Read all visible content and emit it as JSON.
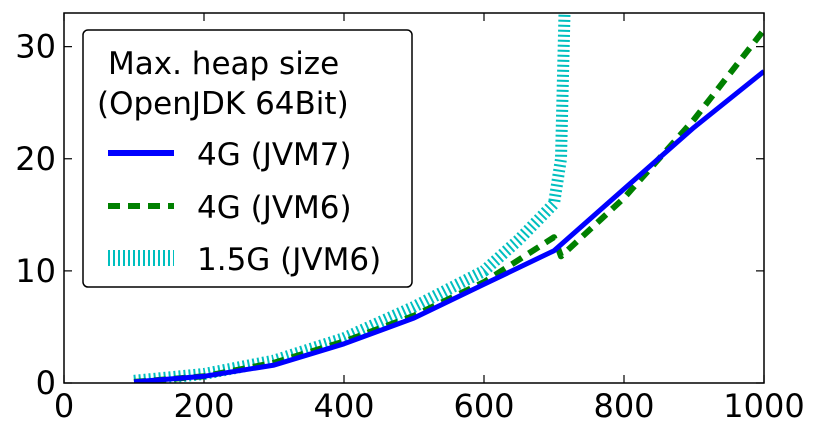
{
  "chart_data": {
    "type": "line",
    "title": "",
    "xlabel": "",
    "ylabel": "",
    "xlim": [
      0,
      1000
    ],
    "ylim": [
      0,
      33
    ],
    "x_ticks": [
      0,
      200,
      400,
      600,
      800,
      1000
    ],
    "y_ticks": [
      0,
      10,
      20,
      30
    ],
    "x_tick_labels": [
      "0",
      "200",
      "400",
      "600",
      "800",
      "1000"
    ],
    "y_tick_labels": [
      "0",
      "10",
      "20",
      "30"
    ],
    "legend": {
      "placement": "top-left",
      "title_lines": [
        "Max. heap size",
        "(OpenJDK 64Bit)"
      ]
    },
    "series": [
      {
        "name": "4G (JVM7)",
        "color": "#0000ff",
        "style": "solid",
        "x": [
          100,
          200,
          300,
          400,
          500,
          600,
          700,
          800,
          900,
          1000
        ],
        "y": [
          0.1,
          0.6,
          1.6,
          3.5,
          5.8,
          8.8,
          11.8,
          17.3,
          22.8,
          27.8
        ]
      },
      {
        "name": "4G (JVM6)",
        "color": "#008000",
        "style": "dashed",
        "x": [
          100,
          200,
          300,
          400,
          500,
          600,
          700,
          710,
          800,
          900,
          1000
        ],
        "y": [
          0.1,
          0.6,
          1.8,
          3.7,
          6.0,
          9.0,
          13.0,
          11.3,
          16.5,
          23.5,
          31.5
        ]
      },
      {
        "name": "1.5G (JVM6)",
        "color": "#00bfbf",
        "style": "dotted",
        "x": [
          100,
          200,
          300,
          400,
          500,
          600,
          650,
          700,
          710,
          715
        ],
        "y": [
          0.2,
          0.8,
          2.0,
          4.0,
          6.8,
          10.0,
          12.8,
          16.0,
          20.0,
          33.0
        ]
      }
    ]
  }
}
